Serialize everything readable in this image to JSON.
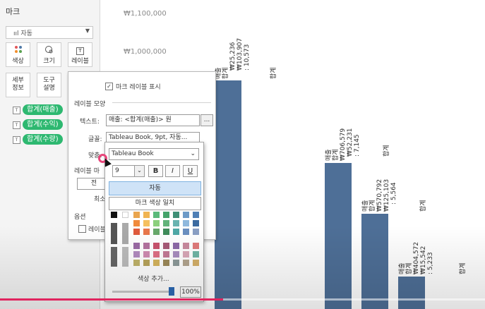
{
  "marks": {
    "title": "마크",
    "mark_type": "ııl 자동",
    "tiles": [
      {
        "label": "색상",
        "icon": "color-dots-icon"
      },
      {
        "label": "크기",
        "icon": "size-icon"
      },
      {
        "label": "레이블",
        "icon": "label-icon",
        "glyph": "T"
      },
      {
        "label": "세부\n정보",
        "icon": "detail-icon"
      },
      {
        "label": "도구\n설명",
        "icon": "tooltip-icon"
      }
    ],
    "pills": [
      "합계(매출)",
      "합계(수익)",
      "합계(수량)"
    ],
    "pill_color": "#2db870"
  },
  "label_popup": {
    "show_labels": "마크 레이블 표시",
    "section_label_appearance": "레이블 모양",
    "text_label": "텍스트:",
    "text_value": "매출: <합계(매출)> 원",
    "more_button": "...",
    "font_label": "글꼴:",
    "font_value": "Tableau Book, 9pt, 자동...",
    "align_label": "맞춤:",
    "marks_to_label": "레이블 마",
    "option1": "전",
    "option2": "최소",
    "section_options": "옵션",
    "overlap_checkbox": "레이블"
  },
  "font_popup": {
    "font_family": "Tableau Book",
    "font_size": "9",
    "bold": "B",
    "italic": "I",
    "underline": "U",
    "auto_color": "자동",
    "match_mark_color": "마크 색상 일치",
    "add_color": "색상 추가...",
    "opacity": "100%",
    "opacity_value": 1.0,
    "selected_color": "#ffffff"
  },
  "chart_data": {
    "type": "bar",
    "y_tick_labels": [
      "₩1,100,000",
      "₩1,000,000"
    ],
    "bar_color": "#4e6f97",
    "bars": [
      {
        "labels": [
          "매출",
          "합계",
          "₩25,236",
          "₩103,907",
          ": 10,573",
          "합계"
        ]
      },
      {
        "labels": [
          "매출",
          "합계",
          "₩706,579",
          "₩52,231",
          ": 7,145",
          "합계"
        ]
      },
      {
        "labels": [
          "매출",
          "합계",
          "₩570,792",
          "₩125,103",
          ": 5,564",
          "합계"
        ]
      },
      {
        "labels": [
          "매출",
          "합계",
          "₩404,572",
          "₩15,542",
          ": 5,233",
          "합계"
        ]
      }
    ]
  },
  "video": {
    "progress": 0.46,
    "progress_color": "#e0245e"
  }
}
